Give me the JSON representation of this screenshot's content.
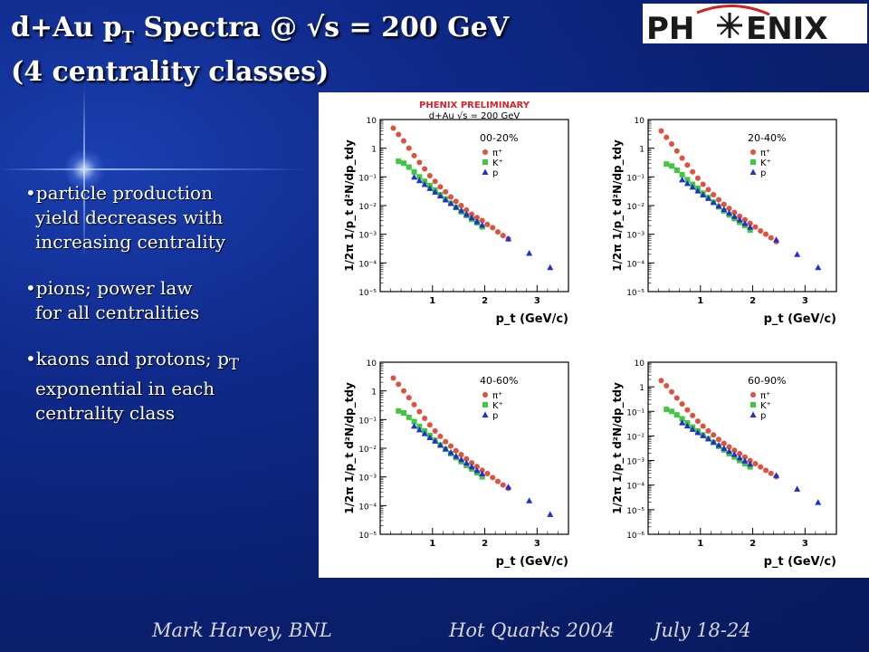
{
  "slide": {
    "title_line1_pre": "d+Au p",
    "title_line1_sub": "T",
    "title_line1_post": " Spectra @ √s = 200 GeV",
    "title_line2": "(4 centrality classes)",
    "logo_text_left": "PH",
    "logo_text_right": "ENIX",
    "bullets": [
      {
        "line1": "•particle production",
        "line2": "yield decreases with",
        "line3": "increasing centrality"
      },
      {
        "line1": "•pions; power law",
        "line2": "for all centralities"
      },
      {
        "line1_pre": "•kaons and protons; p",
        "line1_sub": "T",
        "line2": "exponential in each",
        "line3": "centrality class"
      }
    ],
    "footer_left": "Mark Harvey, BNL",
    "footer_mid": "Hot Quarks 2004",
    "footer_right": "July 18-24"
  },
  "figure": {
    "header_line1": "PHENIX PRELIMINARY",
    "header_line2": "d+Au √s = 200 GeV",
    "header_color": "#e0202a"
  },
  "chart_data": [
    {
      "type": "scatter",
      "panel": "00-20%",
      "xlabel": "p_t (GeV/c)",
      "ylabel": "1/2π 1/p_t d²N/dp_tdy",
      "xlim": [
        0,
        3.6
      ],
      "ylim_exp": [
        -5,
        1
      ],
      "xticks": [
        "1",
        "2",
        "3"
      ],
      "yticks": [
        "10",
        "1",
        "10⁻¹",
        "10⁻²",
        "10⁻³",
        "10⁻⁴",
        "10⁻⁵"
      ],
      "legend": [
        "π⁺",
        "K⁺",
        "p"
      ],
      "series": [
        {
          "name": "π⁺",
          "color": "#e0503c",
          "marker": "circle",
          "x": [
            0.25,
            0.35,
            0.45,
            0.55,
            0.65,
            0.75,
            0.85,
            0.95,
            1.05,
            1.15,
            1.25,
            1.35,
            1.45,
            1.55,
            1.65,
            1.75,
            1.85,
            1.95,
            2.05,
            2.15,
            2.25,
            2.35,
            2.45
          ],
          "y": [
            5,
            3,
            1.8,
            1.0,
            0.55,
            0.32,
            0.19,
            0.11,
            0.07,
            0.045,
            0.03,
            0.02,
            0.014,
            0.01,
            0.007,
            0.005,
            0.0038,
            0.003,
            0.0022,
            0.0017,
            0.0012,
            0.0009,
            0.0007
          ]
        },
        {
          "name": "K⁺",
          "color": "#40c840",
          "marker": "square",
          "x": [
            0.35,
            0.45,
            0.55,
            0.65,
            0.75,
            0.85,
            0.95,
            1.05,
            1.15,
            1.25,
            1.35,
            1.45,
            1.55,
            1.65,
            1.75,
            1.85,
            1.95
          ],
          "y": [
            0.35,
            0.3,
            0.22,
            0.15,
            0.1,
            0.07,
            0.05,
            0.035,
            0.024,
            0.017,
            0.012,
            0.0085,
            0.006,
            0.0045,
            0.0033,
            0.0025,
            0.0018
          ]
        },
        {
          "name": "p",
          "color": "#2030d0",
          "marker": "triangle",
          "x": [
            0.65,
            0.75,
            0.85,
            0.95,
            1.05,
            1.15,
            1.25,
            1.35,
            1.45,
            1.55,
            1.65,
            1.75,
            1.85,
            1.95,
            2.45,
            2.85,
            3.25
          ],
          "y": [
            0.1,
            0.075,
            0.055,
            0.04,
            0.03,
            0.022,
            0.016,
            0.012,
            0.009,
            0.0068,
            0.005,
            0.0038,
            0.0028,
            0.0021,
            0.0007,
            0.00022,
            7e-05
          ]
        }
      ]
    },
    {
      "type": "scatter",
      "panel": "20-40%",
      "xlabel": "p_t (GeV/c)",
      "ylabel": "1/2π 1/p_t d²N/dp_tdy",
      "xlim": [
        0,
        3.6
      ],
      "ylim_exp": [
        -5,
        1
      ],
      "xticks": [
        "1",
        "2",
        "3"
      ],
      "yticks": [
        "10",
        "1",
        "10⁻¹",
        "10⁻²",
        "10⁻³",
        "10⁻⁴",
        "10⁻⁵"
      ],
      "legend": [
        "π⁺",
        "K⁺",
        "p"
      ],
      "series": [
        {
          "name": "π⁺",
          "color": "#e0503c",
          "marker": "circle",
          "x": [
            0.25,
            0.35,
            0.45,
            0.55,
            0.65,
            0.75,
            0.85,
            0.95,
            1.05,
            1.15,
            1.25,
            1.35,
            1.45,
            1.55,
            1.65,
            1.75,
            1.85,
            1.95,
            2.05,
            2.15,
            2.25,
            2.35,
            2.45
          ],
          "y": [
            4,
            2.4,
            1.4,
            0.8,
            0.45,
            0.26,
            0.15,
            0.09,
            0.055,
            0.036,
            0.024,
            0.016,
            0.011,
            0.008,
            0.0058,
            0.0042,
            0.0032,
            0.0024,
            0.0018,
            0.0013,
            0.001,
            0.00075,
            0.00055
          ]
        },
        {
          "name": "K⁺",
          "color": "#40c840",
          "marker": "square",
          "x": [
            0.35,
            0.45,
            0.55,
            0.65,
            0.75,
            0.85,
            0.95,
            1.05,
            1.15,
            1.25,
            1.35,
            1.45,
            1.55,
            1.65,
            1.75,
            1.85,
            1.95
          ],
          "y": [
            0.28,
            0.24,
            0.17,
            0.12,
            0.08,
            0.055,
            0.04,
            0.027,
            0.019,
            0.013,
            0.009,
            0.0065,
            0.0047,
            0.0035,
            0.0026,
            0.002,
            0.0014
          ]
        },
        {
          "name": "p",
          "color": "#2030d0",
          "marker": "triangle",
          "x": [
            0.65,
            0.75,
            0.85,
            0.95,
            1.05,
            1.15,
            1.25,
            1.35,
            1.45,
            1.55,
            1.65,
            1.75,
            1.85,
            1.95,
            2.45,
            2.85,
            3.25
          ],
          "y": [
            0.08,
            0.06,
            0.045,
            0.033,
            0.024,
            0.018,
            0.013,
            0.0098,
            0.0074,
            0.0056,
            0.0042,
            0.0032,
            0.0024,
            0.0018,
            0.00065,
            0.0002,
            7e-05
          ]
        }
      ]
    },
    {
      "type": "scatter",
      "panel": "40-60%",
      "xlabel": "p_t (GeV/c)",
      "ylabel": "1/2π 1/p_t d²N/dp_tdy",
      "xlim": [
        0,
        3.6
      ],
      "ylim_exp": [
        -5,
        1
      ],
      "xticks": [
        "1",
        "2",
        "3"
      ],
      "yticks": [
        "10",
        "1",
        "10⁻¹",
        "10⁻²",
        "10⁻³",
        "10⁻⁴",
        "10⁻⁵"
      ],
      "legend": [
        "π⁺",
        "K⁺",
        "p"
      ],
      "series": [
        {
          "name": "π⁺",
          "color": "#e0503c",
          "marker": "circle",
          "x": [
            0.25,
            0.35,
            0.45,
            0.55,
            0.65,
            0.75,
            0.85,
            0.95,
            1.05,
            1.15,
            1.25,
            1.35,
            1.45,
            1.55,
            1.65,
            1.75,
            1.85,
            1.95,
            2.05,
            2.15,
            2.25,
            2.35,
            2.45
          ],
          "y": [
            2.8,
            1.7,
            1.0,
            0.58,
            0.33,
            0.19,
            0.11,
            0.065,
            0.04,
            0.026,
            0.017,
            0.012,
            0.0082,
            0.006,
            0.0043,
            0.0031,
            0.0023,
            0.0017,
            0.0013,
            0.00095,
            0.0007,
            0.00052,
            0.0004
          ]
        },
        {
          "name": "K⁺",
          "color": "#40c840",
          "marker": "square",
          "x": [
            0.35,
            0.45,
            0.55,
            0.65,
            0.75,
            0.85,
            0.95,
            1.05,
            1.15,
            1.25,
            1.35,
            1.45,
            1.55,
            1.65,
            1.75,
            1.85,
            1.95
          ],
          "y": [
            0.2,
            0.17,
            0.12,
            0.085,
            0.058,
            0.04,
            0.028,
            0.019,
            0.013,
            0.0092,
            0.0065,
            0.0047,
            0.0034,
            0.0025,
            0.0019,
            0.0014,
            0.001
          ]
        },
        {
          "name": "p",
          "color": "#2030d0",
          "marker": "triangle",
          "x": [
            0.65,
            0.75,
            0.85,
            0.95,
            1.05,
            1.15,
            1.25,
            1.35,
            1.45,
            1.55,
            1.65,
            1.75,
            1.85,
            1.95,
            2.45,
            2.85,
            3.25
          ],
          "y": [
            0.06,
            0.045,
            0.033,
            0.024,
            0.018,
            0.013,
            0.0097,
            0.0072,
            0.0054,
            0.0041,
            0.0031,
            0.0023,
            0.0017,
            0.0013,
            0.00045,
            0.00015,
            5e-05
          ]
        }
      ]
    },
    {
      "type": "scatter",
      "panel": "60-90%",
      "xlabel": "p_t (GeV/c)",
      "ylabel": "1/2π 1/p_t d²N/dp_tdy",
      "xlim": [
        0,
        3.6
      ],
      "ylim_exp": [
        -6,
        1
      ],
      "xticks": [
        "1",
        "2",
        "3"
      ],
      "yticks": [
        "10",
        "1",
        "10⁻¹",
        "10⁻²",
        "10⁻³",
        "10⁻⁴",
        "10⁻⁵",
        "10⁻⁶"
      ],
      "legend": [
        "π⁺",
        "K⁺",
        "p"
      ],
      "series": [
        {
          "name": "π⁺",
          "color": "#e0503c",
          "marker": "circle",
          "x": [
            0.25,
            0.35,
            0.45,
            0.55,
            0.65,
            0.75,
            0.85,
            0.95,
            1.05,
            1.15,
            1.25,
            1.35,
            1.45,
            1.55,
            1.65,
            1.75,
            1.85,
            1.95,
            2.05,
            2.15,
            2.25,
            2.35,
            2.45
          ],
          "y": [
            1.8,
            1.1,
            0.62,
            0.35,
            0.2,
            0.115,
            0.068,
            0.04,
            0.025,
            0.016,
            0.011,
            0.0072,
            0.005,
            0.0036,
            0.0026,
            0.0019,
            0.0014,
            0.001,
            0.00075,
            0.00055,
            0.0004,
            0.0003,
            0.00022
          ]
        },
        {
          "name": "K⁺",
          "color": "#40c840",
          "marker": "square",
          "x": [
            0.35,
            0.45,
            0.55,
            0.65,
            0.75,
            0.85,
            0.95,
            1.05,
            1.15,
            1.25,
            1.35,
            1.45,
            1.55,
            1.65,
            1.75,
            1.85,
            1.95
          ],
          "y": [
            0.12,
            0.1,
            0.072,
            0.05,
            0.034,
            0.023,
            0.016,
            0.011,
            0.0077,
            0.0054,
            0.0038,
            0.0027,
            0.0019,
            0.0014,
            0.001,
            0.00075,
            0.00055
          ]
        },
        {
          "name": "p",
          "color": "#2030d0",
          "marker": "triangle",
          "x": [
            0.65,
            0.75,
            0.85,
            0.95,
            1.05,
            1.15,
            1.25,
            1.35,
            1.45,
            1.55,
            1.65,
            1.75,
            1.85,
            1.95,
            2.45,
            2.85,
            3.25
          ],
          "y": [
            0.035,
            0.026,
            0.019,
            0.014,
            0.0105,
            0.0078,
            0.0058,
            0.0043,
            0.0032,
            0.0024,
            0.0018,
            0.0013,
            0.00098,
            0.00073,
            0.00025,
            7e-05,
            2e-05
          ]
        }
      ]
    }
  ]
}
